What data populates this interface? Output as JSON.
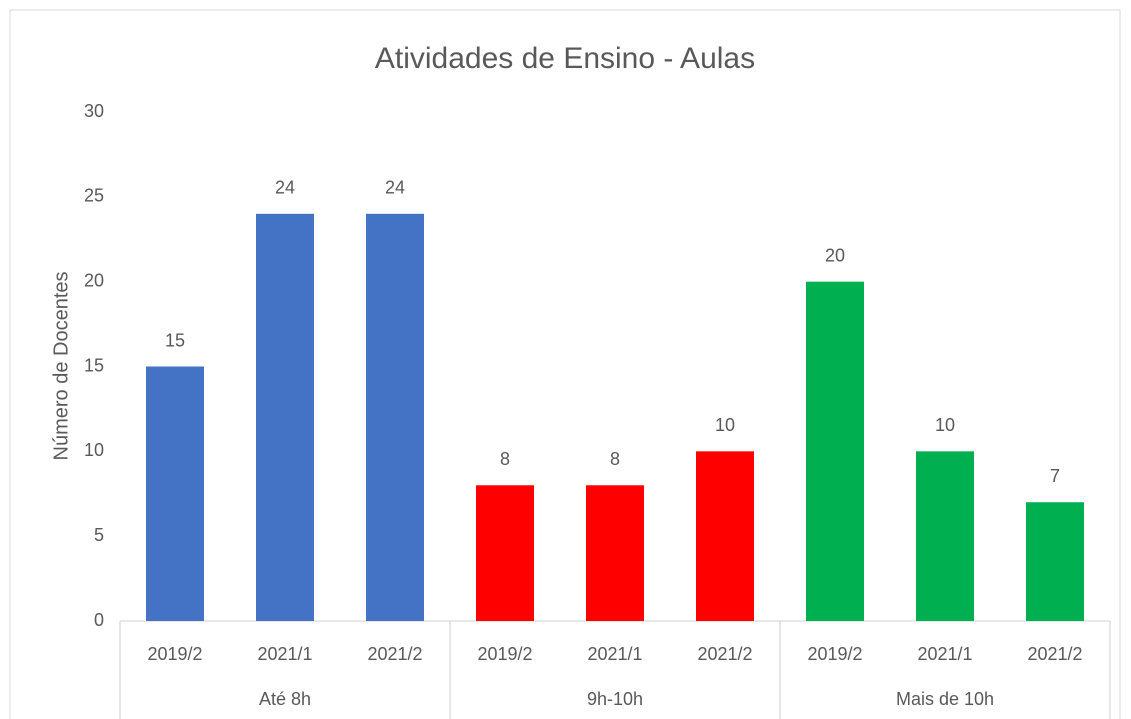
{
  "chart_data": {
    "type": "bar",
    "title": "Atividades de Ensino - Aulas",
    "y_label": "Número de Docentes",
    "categories": [
      "2019/2",
      "2021/1",
      "2021/2"
    ],
    "series": [
      {
        "name": "Até 8h",
        "color": "#4472c4",
        "values": [
          15,
          24,
          24
        ]
      },
      {
        "name": "9h-10h",
        "color": "#ff0000",
        "values": [
          8,
          8,
          10
        ]
      },
      {
        "name": "Mais de 10h",
        "color": "#00b050",
        "values": [
          20,
          10,
          7
        ]
      }
    ],
    "ylim": [
      0,
      30
    ],
    "yticks": [
      0,
      5,
      10,
      15,
      20,
      25,
      30
    ],
    "grid": false,
    "data_labels": true
  }
}
